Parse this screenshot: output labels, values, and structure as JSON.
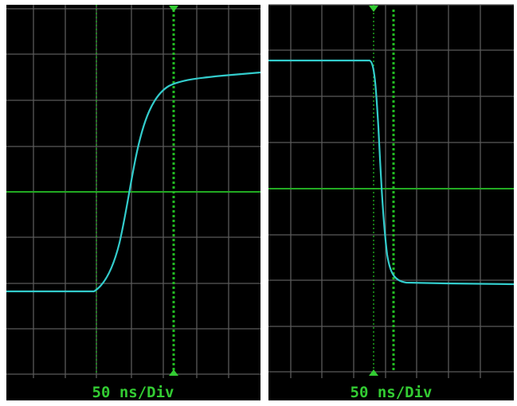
{
  "panels": [
    {
      "timebase_label": "50 ns/Div"
    },
    {
      "timebase_label": "50 ns/Div"
    }
  ]
}
